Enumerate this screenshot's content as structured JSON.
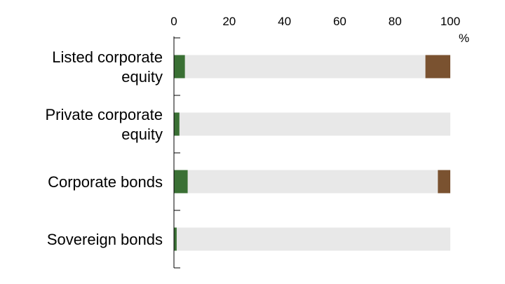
{
  "chart_data": {
    "type": "bar",
    "orientation": "horizontal",
    "stacked": true,
    "title": "",
    "xlabel": "",
    "ylabel": "",
    "unit": "%",
    "xlim": [
      0,
      100
    ],
    "xticks": [
      0,
      20,
      40,
      60,
      80,
      100
    ],
    "xtick_labels": [
      "0",
      "20",
      "40",
      "60",
      "80",
      "100"
    ],
    "axis_position": "top",
    "grid": false,
    "legend": null,
    "categories": [
      [
        "Listed corporate",
        "equity"
      ],
      [
        "Private corporate",
        "equity"
      ],
      [
        "Corporate bonds"
      ],
      [
        "Sovereign bonds"
      ]
    ],
    "series": [
      {
        "color": "#3a7034",
        "values": [
          4,
          2,
          5,
          1
        ]
      },
      {
        "color": "#e8e8e8",
        "values": [
          87,
          98,
          90.5,
          99
        ]
      },
      {
        "color": "#7a5230",
        "values": [
          9,
          0,
          4.5,
          0
        ]
      }
    ]
  }
}
